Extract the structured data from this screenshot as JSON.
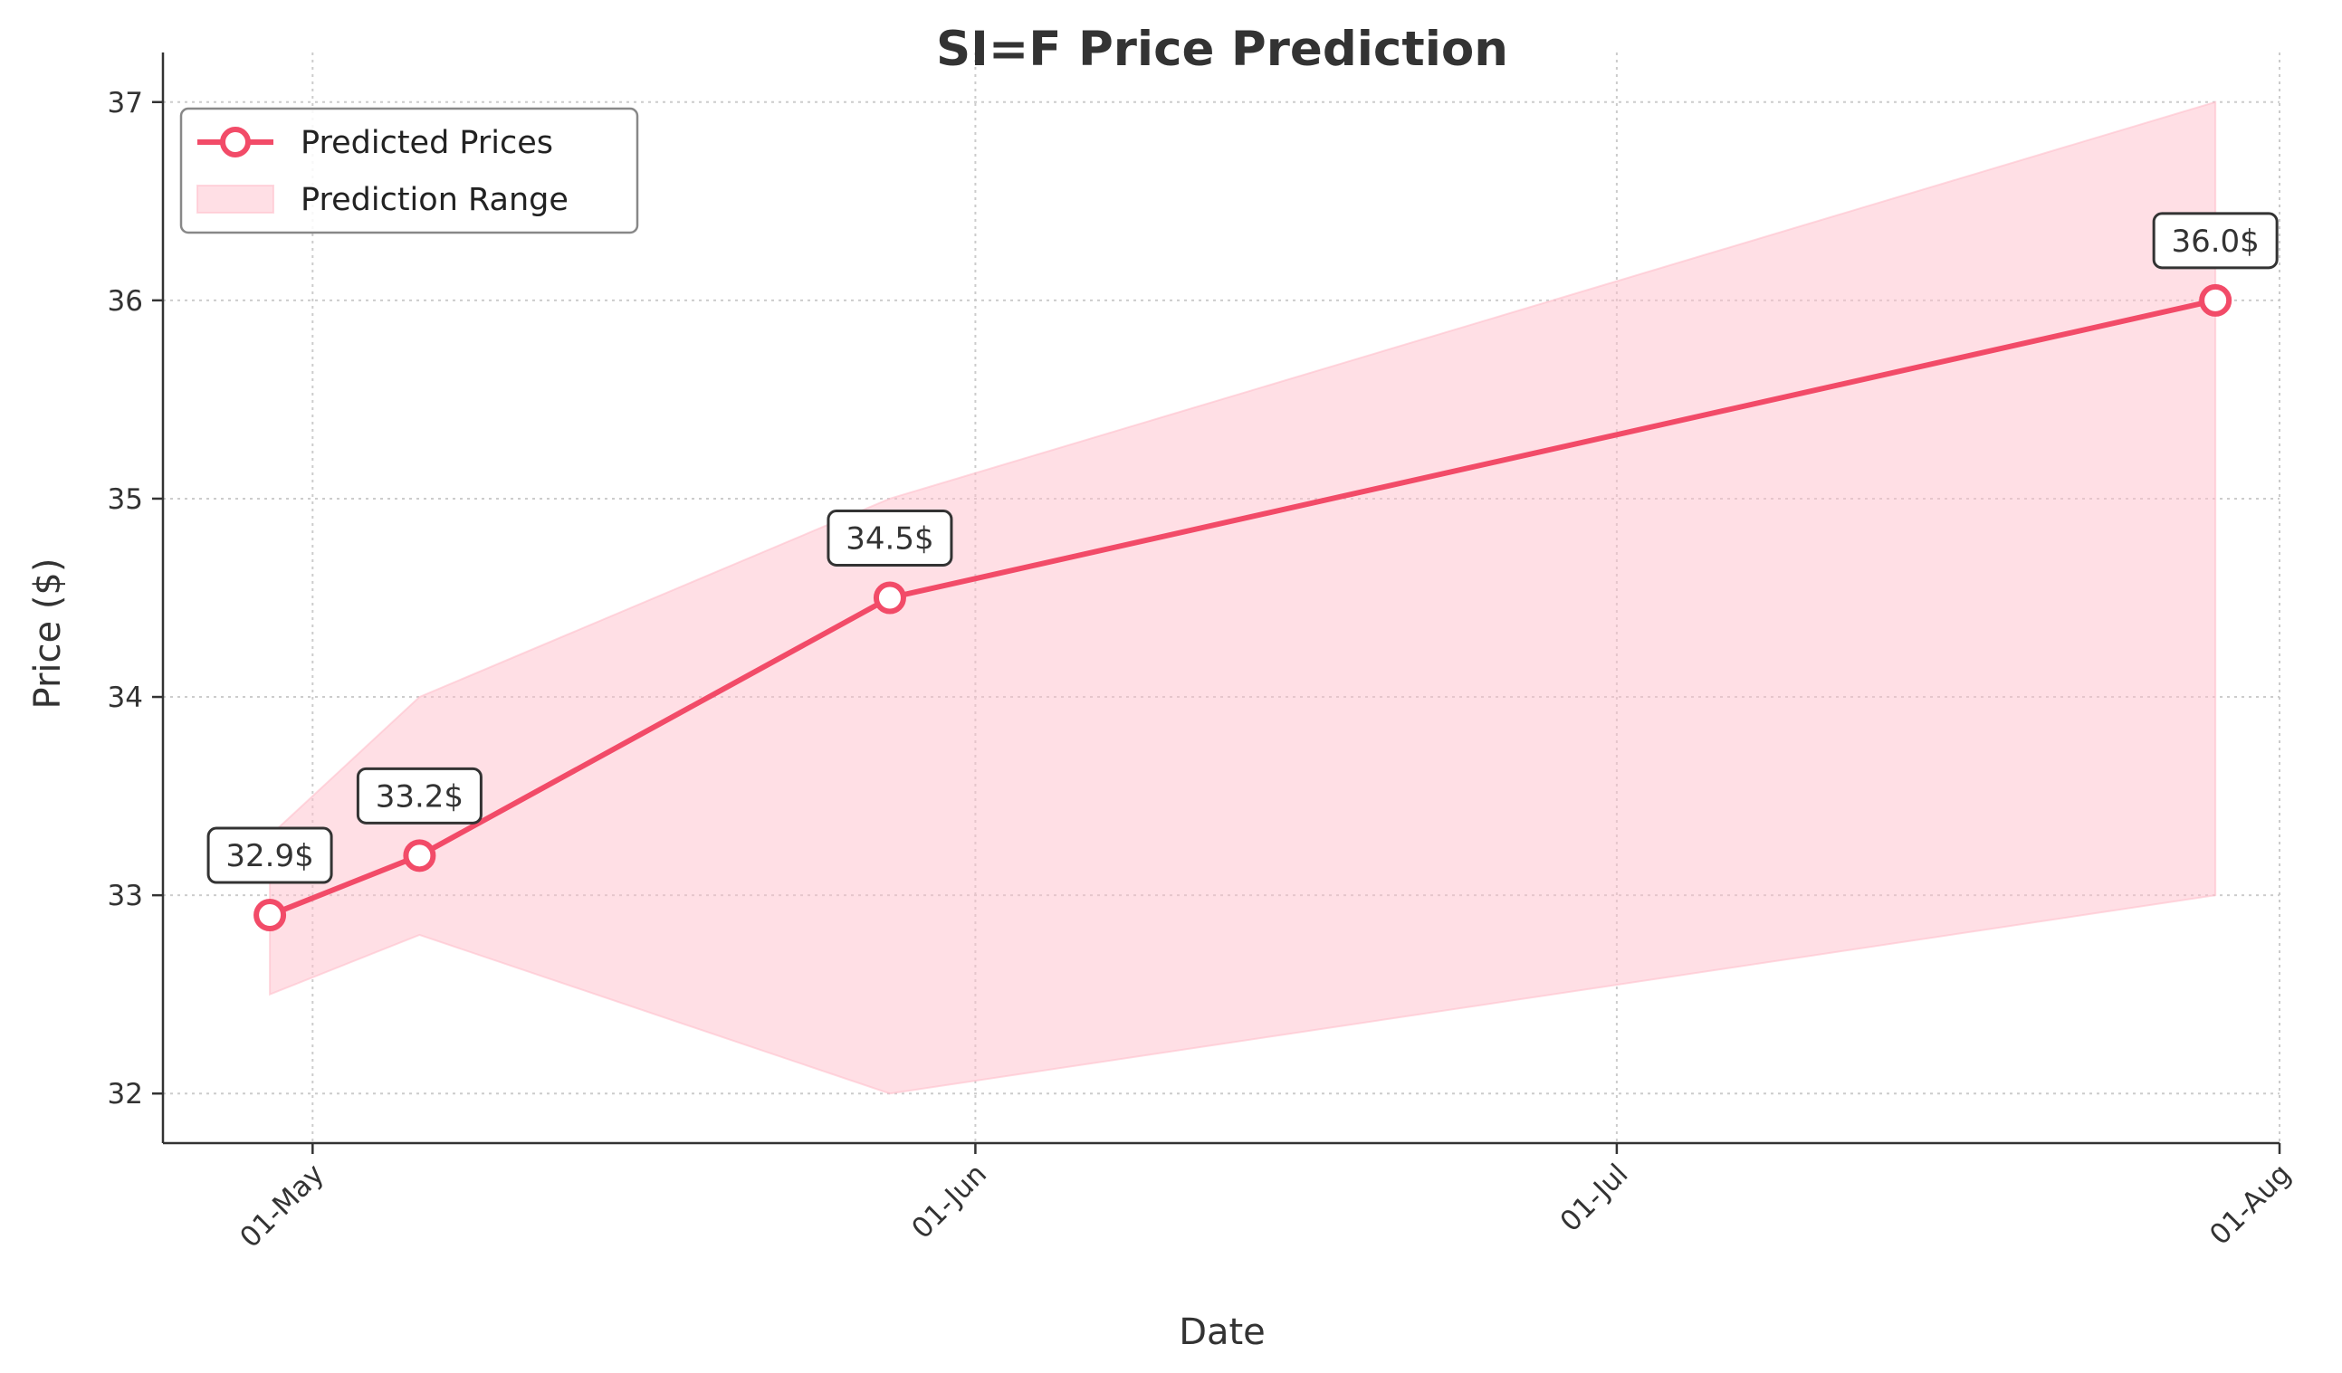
{
  "chart_data": {
    "type": "line",
    "title": "SI=F Price Prediction",
    "xlabel": "Date",
    "ylabel": "Price ($)",
    "x_tick_labels": [
      "01-May",
      "01-Jun",
      "01-Jul",
      "01-Aug"
    ],
    "x_tick_dates": [
      "2025-05-01",
      "2025-06-01",
      "2025-07-01",
      "2025-08-01"
    ],
    "y_ticks": [
      32,
      33,
      34,
      35,
      36,
      37
    ],
    "xlim": [
      "2025-04-24",
      "2025-08-01"
    ],
    "ylim": [
      31.75,
      37.25
    ],
    "grid": true,
    "legend_position": "top-left",
    "series": [
      {
        "name": "Predicted Prices",
        "color": "#f24b68",
        "x": [
          "2025-04-29",
          "2025-05-06",
          "2025-05-28",
          "2025-07-29"
        ],
        "y": [
          32.9,
          33.2,
          34.5,
          36.0
        ],
        "labels": [
          "32.9$",
          "33.2$",
          "34.5$",
          "36.0$"
        ]
      }
    ],
    "range": {
      "name": "Prediction Range",
      "color": "#ffc0cb",
      "x": [
        "2025-04-29",
        "2025-05-06",
        "2025-05-28",
        "2025-07-29"
      ],
      "lower": [
        32.5,
        32.8,
        32.0,
        33.0
      ],
      "upper": [
        33.3,
        34.0,
        35.0,
        37.0
      ]
    }
  }
}
